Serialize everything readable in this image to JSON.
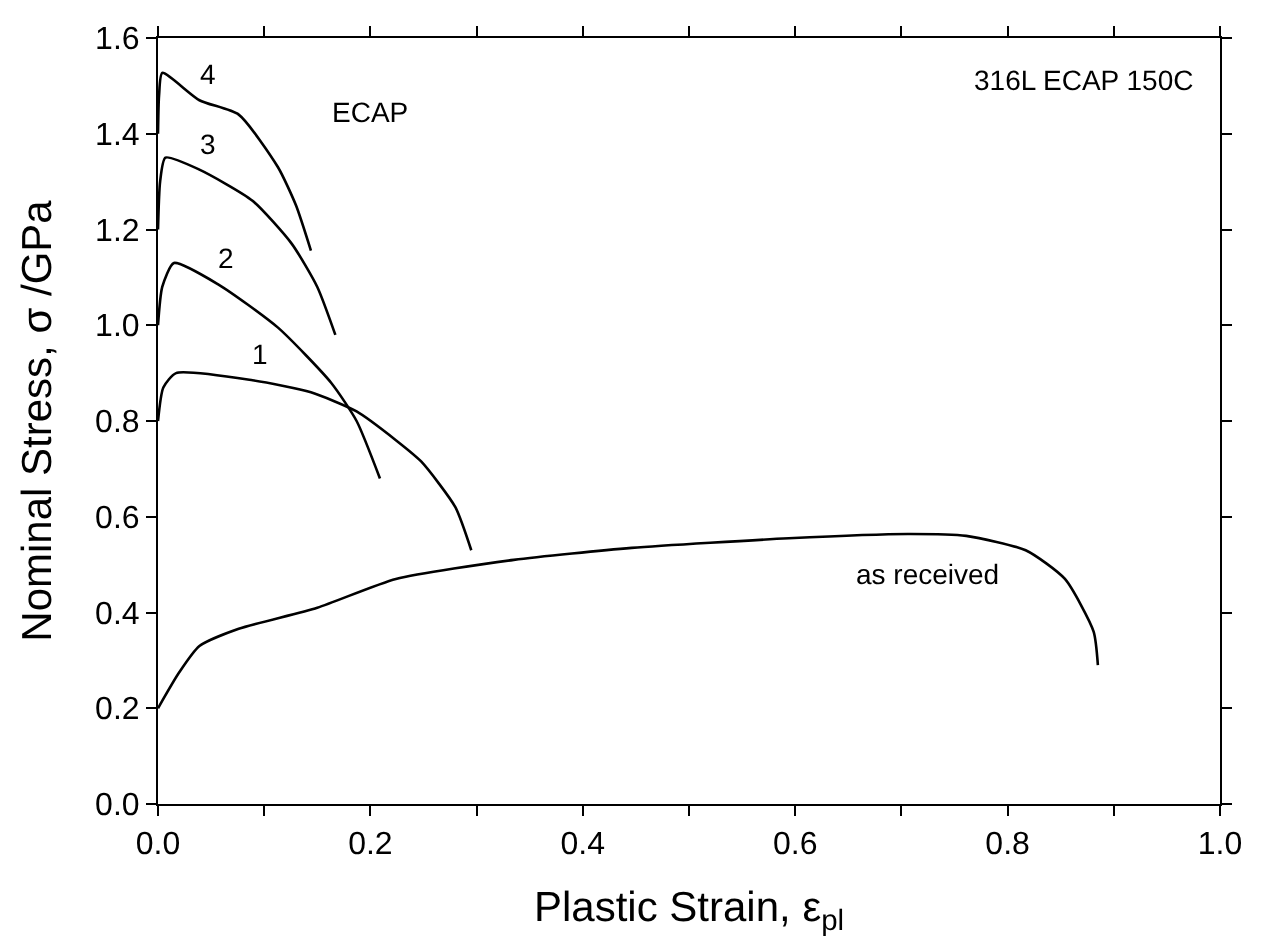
{
  "chart_data": {
    "type": "line",
    "xlabel": "Plastic Strain, ε$_{pl}$",
    "ylabel": "Nominal Stress, σ /GPa",
    "xlim": [
      0,
      1.0
    ],
    "ylim": [
      0,
      1.6
    ],
    "xticks": [
      {
        "value": 0,
        "label": "0.0"
      },
      {
        "value": 0.1,
        "label": null
      },
      0.2,
      {
        "value": 0.3,
        "label": null
      },
      0.4,
      {
        "value": 0.5,
        "label": null
      },
      0.6,
      {
        "value": 0.7,
        "label": null
      },
      0.8,
      {
        "value": 0.9,
        "label": null
      },
      {
        "value": 1.0,
        "label": "1.0"
      }
    ],
    "yticks": [
      {
        "value": 0,
        "label": "0.0"
      },
      0.2,
      0.4,
      0.6,
      0.8,
      {
        "value": 1.0,
        "label": "1.0"
      },
      1.2,
      1.4,
      1.6
    ],
    "grid": false,
    "legend": false,
    "marker": "none",
    "line_style": "solid",
    "series": [
      {
        "name": "4",
        "color": "#000000",
        "x": [
          0,
          0.001,
          0.004,
          0.039,
          0.076,
          0.113,
          0.13,
          0.144
        ],
        "values": [
          1.4,
          1.48,
          1.527,
          1.47,
          1.44,
          1.33,
          1.25,
          1.156
        ]
      },
      {
        "name": "3",
        "color": "#000000",
        "x": [
          0,
          0.002,
          0.007,
          0.039,
          0.089,
          0.126,
          0.15,
          0.167
        ],
        "values": [
          1.2,
          1.3,
          1.35,
          1.325,
          1.26,
          1.17,
          1.08,
          0.98
        ]
      },
      {
        "name": "2",
        "color": "#000000",
        "x": [
          0,
          0.004,
          0.015,
          0.057,
          0.113,
          0.163,
          0.187,
          0.209
        ],
        "values": [
          1.0,
          1.08,
          1.13,
          1.085,
          0.995,
          0.88,
          0.8,
          0.68
        ]
      },
      {
        "name": "1",
        "color": "#000000",
        "x": [
          0,
          0.005,
          0.017,
          0.089,
          0.144,
          0.187,
          0.224,
          0.248,
          0.28,
          0.295
        ],
        "values": [
          0.8,
          0.87,
          0.9,
          0.885,
          0.86,
          0.82,
          0.76,
          0.715,
          0.62,
          0.53
        ]
      },
      {
        "name": "as received",
        "color": "#000000",
        "x": [
          0,
          0.02,
          0.039,
          0.076,
          0.15,
          0.224,
          0.335,
          0.446,
          0.594,
          0.706,
          0.761,
          0.817,
          0.854,
          0.881,
          0.885
        ],
        "values": [
          0.2,
          0.275,
          0.33,
          0.366,
          0.41,
          0.47,
          0.51,
          0.535,
          0.555,
          0.564,
          0.56,
          0.53,
          0.47,
          0.36,
          0.29
        ]
      }
    ],
    "annotations": [
      "ECAP",
      "316L ECAP 150C"
    ]
  }
}
